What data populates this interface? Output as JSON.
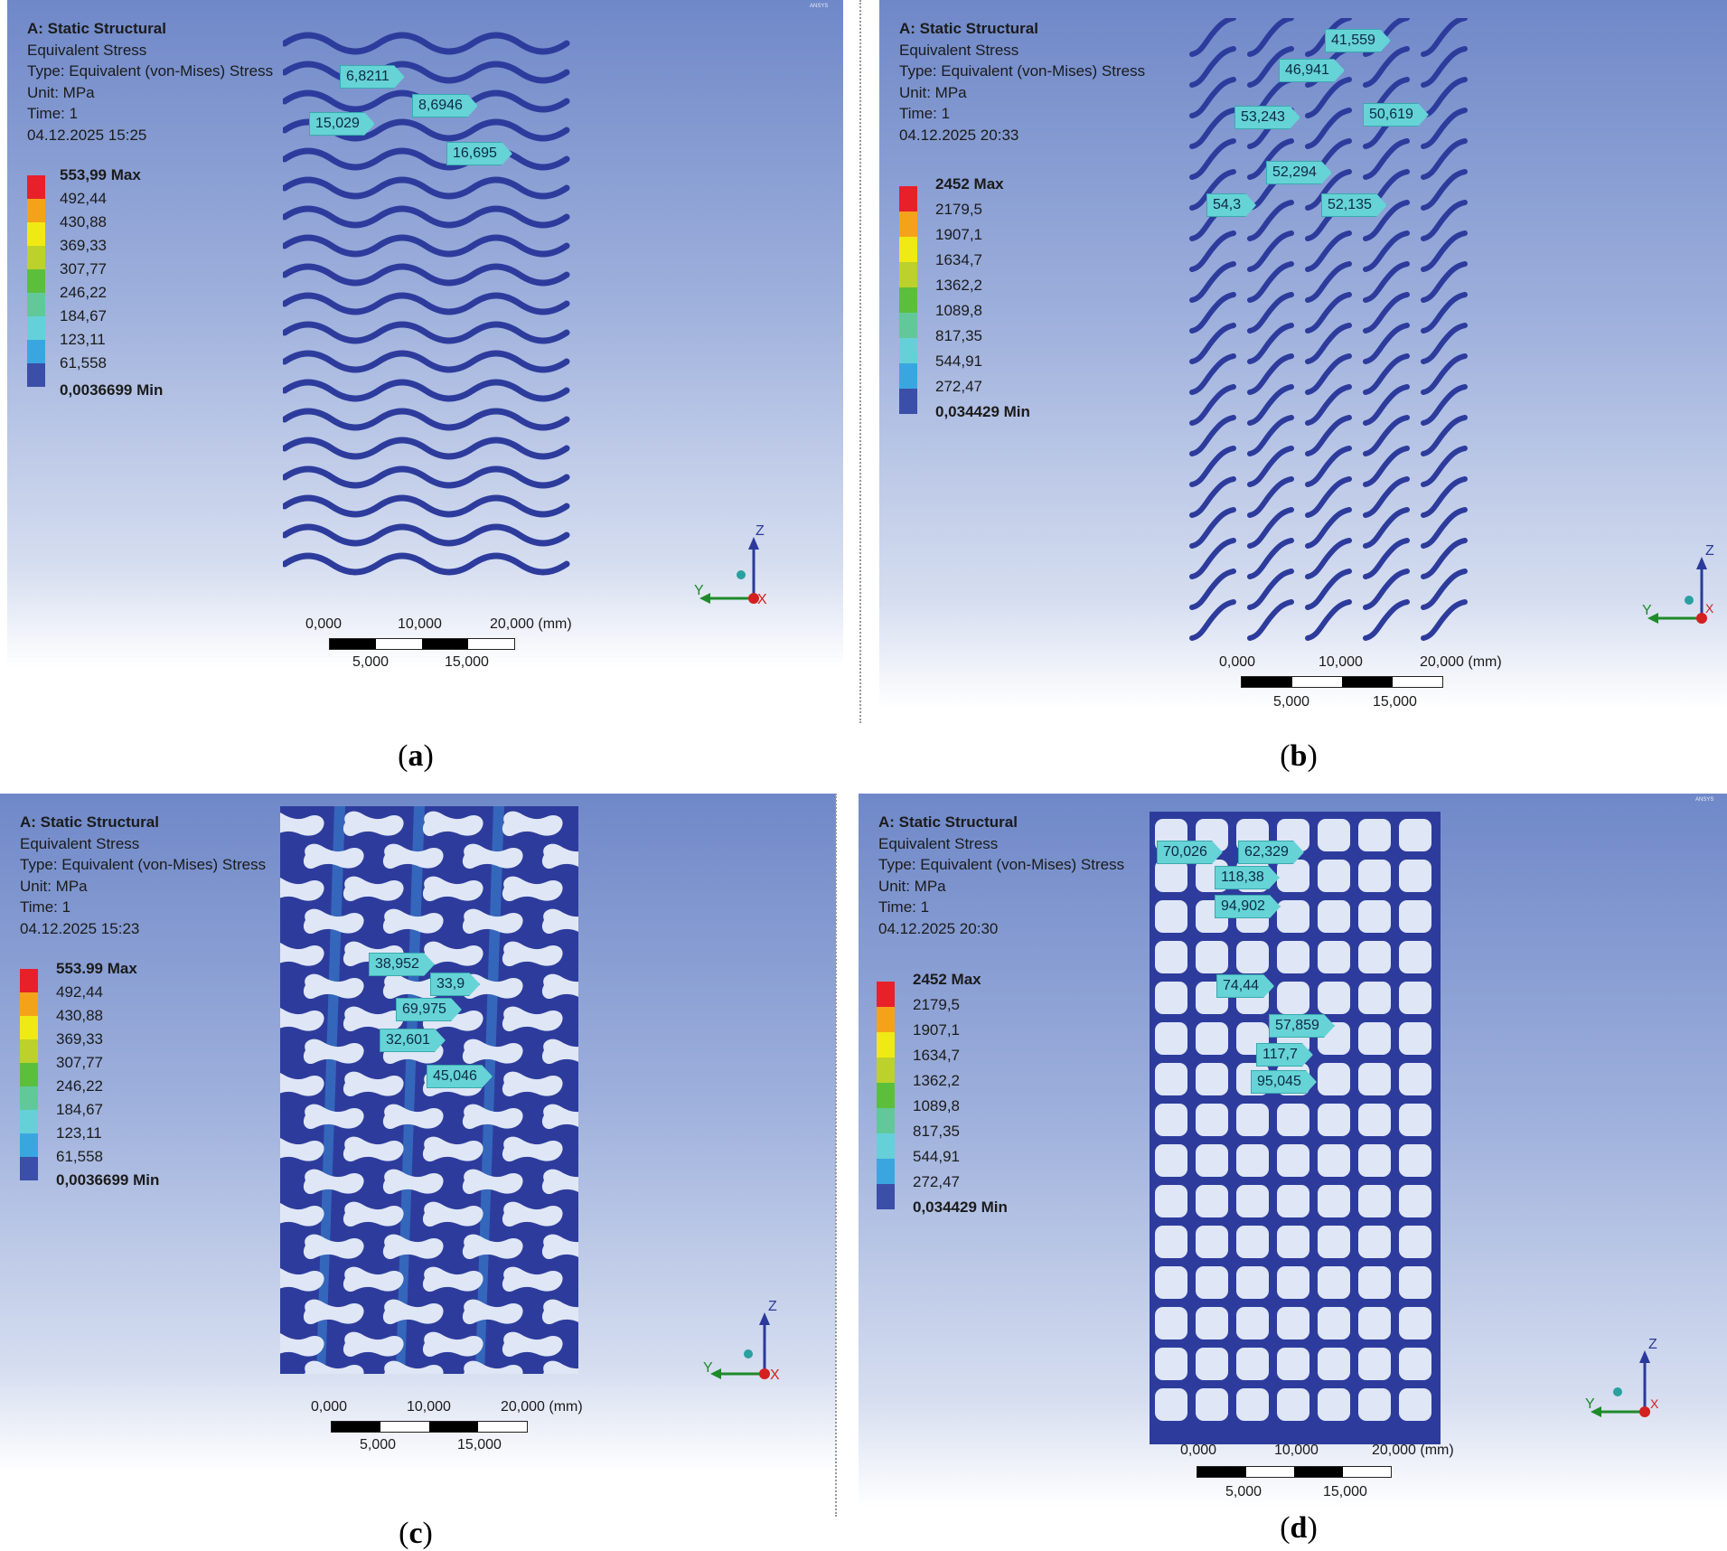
{
  "panels": [
    {
      "id": "a",
      "info": [
        "A: Static Structural",
        "Equivalent Stress",
        "Type: Equivalent (von-Mises) Stress",
        "Unit: MPa",
        "Time: 1",
        "04.12.2025 15:25"
      ],
      "legend": [
        "553,99 Max",
        "492,44",
        "430,88",
        "369,33",
        "307,77",
        "246,22",
        "184,67",
        "123,11",
        "61,558",
        "0,0036699 Min"
      ],
      "probes": [
        "6,8211",
        "8,6946",
        "15,029",
        "16,695"
      ],
      "scale_top": [
        "0,000",
        "10,000",
        "20,000 (mm)"
      ],
      "scale_bottom": [
        "5,000",
        "15,000"
      ],
      "caption": "a"
    },
    {
      "id": "b",
      "info": [
        "A: Static Structural",
        "Equivalent Stress",
        "Type: Equivalent (von-Mises) Stress",
        "Unit: MPa",
        "Time: 1",
        "04.12.2025 20:33"
      ],
      "legend": [
        "2452 Max",
        "2179,5",
        "1907,1",
        "1634,7",
        "1362,2",
        "1089,8",
        "817,35",
        "544,91",
        "272,47",
        "0,034429 Min"
      ],
      "probes": [
        "41,559",
        "46,941",
        "53,243",
        "50,619",
        "52,294",
        "54,3",
        "52,135"
      ],
      "scale_top": [
        "0,000",
        "10,000",
        "20,000 (mm)"
      ],
      "scale_bottom": [
        "5,000",
        "15,000"
      ],
      "caption": "b"
    },
    {
      "id": "c",
      "info": [
        "A: Static Structural",
        "Equivalent Stress",
        "Type: Equivalent (von-Mises) Stress",
        "Unit: MPa",
        "Time: 1",
        "04.12.2025 15:23"
      ],
      "legend": [
        "553.99 Max",
        "492,44",
        "430,88",
        "369,33",
        "307,77",
        "246,22",
        "184,67",
        "123,11",
        "61,558",
        "0,0036699 Min"
      ],
      "probes": [
        "38,952",
        "33,9",
        "69,975",
        "32,601",
        "45,046"
      ],
      "scale_top": [
        "0,000",
        "10,000",
        "20,000 (mm)"
      ],
      "scale_bottom": [
        "5,000",
        "15,000"
      ],
      "caption": "c"
    },
    {
      "id": "d",
      "info": [
        "A: Static Structural",
        "Equivalent Stress",
        "Type: Equivalent (von-Mises) Stress",
        "Unit: MPa",
        "Time: 1",
        "04.12.2025 20:30"
      ],
      "legend": [
        "2452 Max",
        "2179,5",
        "1907,1",
        "1634,7",
        "1362,2",
        "1089,8",
        "817,35",
        "544,91",
        "272,47",
        "0,034429 Min"
      ],
      "probes": [
        "70,026",
        "62,329",
        "118,38",
        "94,902",
        "74,44",
        "57,859",
        "117,7",
        "95,045"
      ],
      "scale_top": [
        "0,000",
        "10,000",
        "20,000 (mm)"
      ],
      "scale_bottom": [
        "5,000",
        "15,000"
      ],
      "caption": "d"
    }
  ],
  "axes": {
    "z": "Z",
    "y": "Y",
    "x": "X"
  },
  "legend_colors": [
    "#e8202a",
    "#f5a21b",
    "#f0ea14",
    "#bcd12c",
    "#5cbf3c",
    "#62c89a",
    "#66d0d8",
    "#3aa6e0",
    "#3b4ea8"
  ],
  "ansys_mark": "ANSYS"
}
